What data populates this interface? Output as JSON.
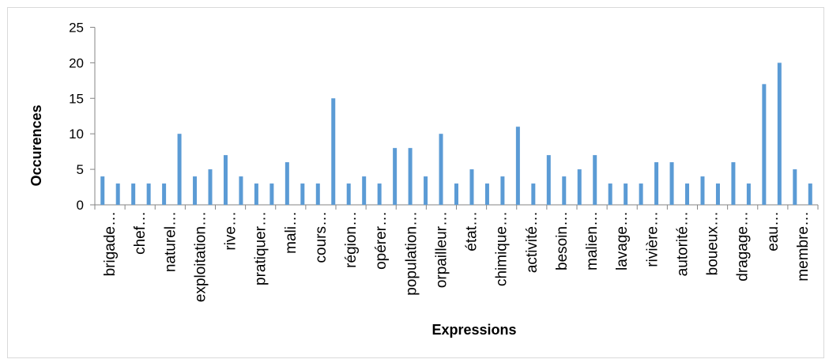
{
  "chart_data": {
    "type": "bar",
    "title": "",
    "xlabel": "Expressions",
    "ylabel": "Occurences",
    "ylim": [
      0,
      25
    ],
    "yticks": [
      0,
      5,
      10,
      15,
      20,
      25
    ],
    "grid": false,
    "legend": "none",
    "bar_color": "#5b9bd5",
    "tick_labels": [
      "brigade…",
      "chef…",
      "naturel…",
      "exploitation…",
      "rive…",
      "pratiquer…",
      "mali…",
      "cours…",
      "région…",
      "opérer…",
      "population…",
      "orpailleur…",
      "état…",
      "chimique…",
      "activité…",
      "besoin…",
      "malien…",
      "lavage…",
      "rivière…",
      "autorité…",
      "boueux…",
      "dragage…",
      "eau…",
      "membre…"
    ],
    "values": [
      4,
      3,
      3,
      3,
      3,
      10,
      4,
      5,
      7,
      4,
      3,
      3,
      6,
      3,
      3,
      15,
      3,
      4,
      3,
      8,
      8,
      4,
      10,
      3,
      5,
      3,
      4,
      11,
      3,
      7,
      4,
      5,
      7,
      3,
      3,
      3,
      6,
      6,
      3,
      4,
      3,
      6,
      3,
      17,
      20,
      5,
      3
    ]
  }
}
